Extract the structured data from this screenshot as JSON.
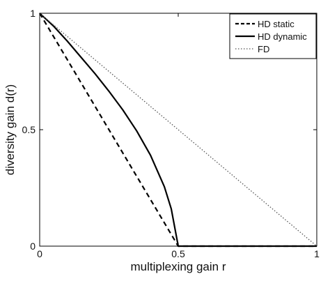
{
  "chart_data": {
    "type": "line",
    "title": "",
    "xlabel": "multiplexing gain r",
    "ylabel": "diversity gain d(r)",
    "xlim": [
      0,
      1
    ],
    "ylim": [
      0,
      1
    ],
    "x_ticks": [
      {
        "value": 0,
        "label": "0"
      },
      {
        "value": 0.5,
        "label": "0.5"
      },
      {
        "value": 1,
        "label": "1"
      }
    ],
    "y_ticks": [
      {
        "value": 0,
        "label": "0"
      },
      {
        "value": 0.5,
        "label": "0.5"
      },
      {
        "value": 1,
        "label": "1"
      }
    ],
    "grid": false,
    "legend_position": "top-right",
    "series": [
      {
        "name": "HD static",
        "style": "dashed",
        "color": "#000000",
        "points": [
          [
            0,
            1
          ],
          [
            0.5,
            0
          ],
          [
            1,
            0
          ]
        ]
      },
      {
        "name": "HD dynamic",
        "style": "solid",
        "color": "#000000",
        "points": [
          [
            0,
            1
          ],
          [
            0.05,
            0.945
          ],
          [
            0.1,
            0.88
          ],
          [
            0.15,
            0.81
          ],
          [
            0.2,
            0.74
          ],
          [
            0.25,
            0.665
          ],
          [
            0.3,
            0.585
          ],
          [
            0.35,
            0.495
          ],
          [
            0.4,
            0.39
          ],
          [
            0.45,
            0.255
          ],
          [
            0.475,
            0.16
          ],
          [
            0.5,
            0.0
          ],
          [
            0.75,
            0
          ],
          [
            1,
            0
          ]
        ]
      },
      {
        "name": "FD",
        "style": "dotted",
        "color": "#555555",
        "points": [
          [
            0,
            1
          ],
          [
            1,
            0
          ]
        ]
      }
    ]
  }
}
